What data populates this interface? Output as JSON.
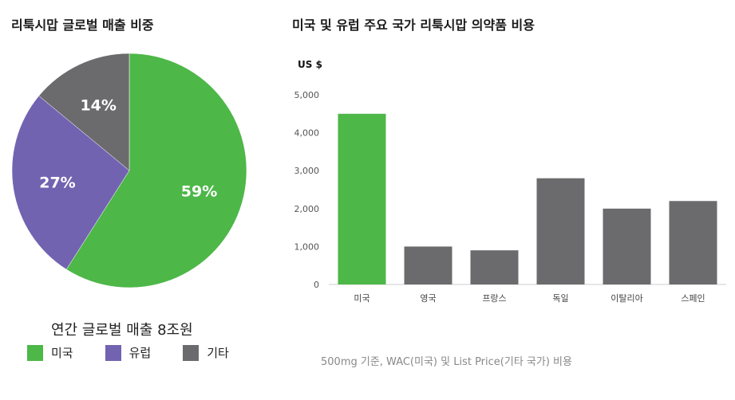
{
  "colors": {
    "us": "#4db748",
    "europe": "#7263b1",
    "other": "#6b6b6e"
  },
  "left": {
    "title": "리툭시맙 글로벌 매출 비중",
    "annual_sales": "연간 글로벌 매출 8조원",
    "legend": [
      {
        "label": "미국",
        "color": "#4db748"
      },
      {
        "label": "유럽",
        "color": "#7263b1"
      },
      {
        "label": "기타",
        "color": "#6b6b6e"
      }
    ]
  },
  "right": {
    "title": "미국 및 유럽 주요 국가 리툭시맙 의약품 비용",
    "footnote": "500mg 기준, WAC(미국) 및 List Price(기타 국가) 비용"
  },
  "chart_data": [
    {
      "type": "pie",
      "slices": [
        {
          "label": "미국",
          "value": 59,
          "text": "59%",
          "color": "#4db748"
        },
        {
          "label": "유럽",
          "value": 27,
          "text": "27%",
          "color": "#7263b1"
        },
        {
          "label": "기타",
          "value": 14,
          "text": "14%",
          "color": "#6b6b6e"
        }
      ]
    },
    {
      "type": "bar",
      "ylabel": "US $",
      "categories": [
        "미국",
        "영국",
        "프랑스",
        "독일",
        "이탈리아",
        "스페인"
      ],
      "values": [
        4500,
        1000,
        900,
        2800,
        2000,
        2200
      ],
      "colors": [
        "#4db748",
        "#6b6b6e",
        "#6b6b6e",
        "#6b6b6e",
        "#6b6b6e",
        "#6b6b6e"
      ],
      "ylim": [
        0,
        5000
      ],
      "yticks": [
        0,
        1000,
        2000,
        3000,
        4000,
        5000
      ],
      "ytick_labels": [
        "0",
        "1,000",
        "2,000",
        "3,000",
        "4,000",
        "5,000"
      ],
      "grid": false
    }
  ]
}
